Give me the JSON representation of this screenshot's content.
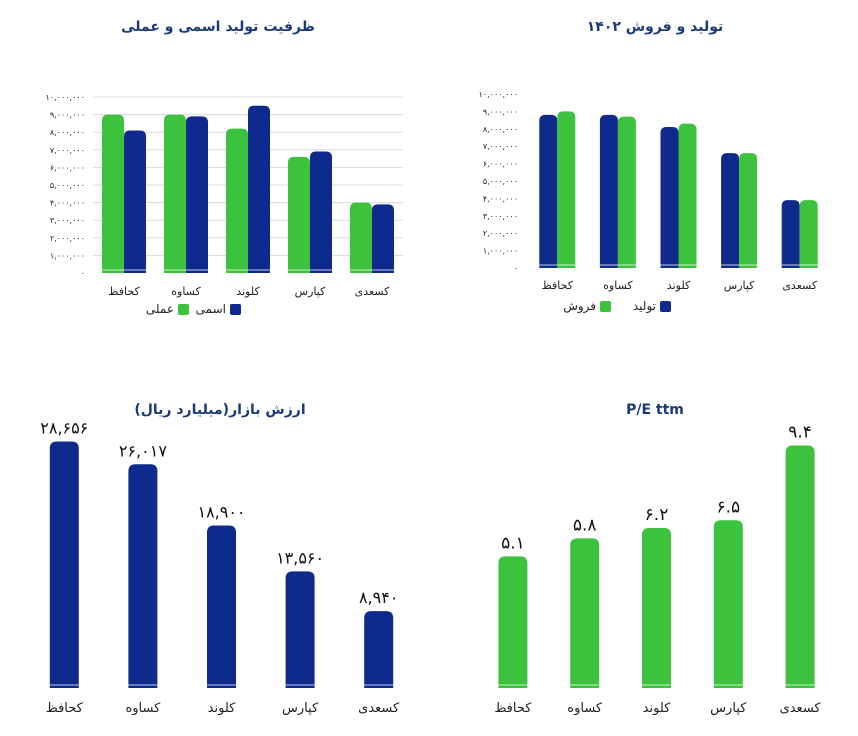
{
  "colors": {
    "green": "#3CC23C",
    "navy": "#0D2A8C",
    "grid": "#D8D8D8",
    "text": "#1a1a1a"
  },
  "chart_data": [
    {
      "id": "production-sales",
      "type": "bar",
      "title": "تولید و فروش ۱۴۰۲",
      "categories": [
        "کحافظ",
        "کساوه",
        "کلوند",
        "کپارس",
        "کسعدی"
      ],
      "series": [
        {
          "name": "تولید",
          "color": "#0D2A8C",
          "values": [
            8800000,
            8800000,
            8100000,
            6600000,
            3900000
          ]
        },
        {
          "name": "فروش",
          "color": "#3CC23C",
          "values": [
            9000000,
            8700000,
            8300000,
            6600000,
            3900000
          ]
        }
      ],
      "ylim": [
        0,
        10000000
      ],
      "yticks": [
        {
          "value": 0,
          "label": "۰"
        },
        {
          "value": 1000000,
          "label": "۱,۰۰۰,۰۰۰"
        },
        {
          "value": 2000000,
          "label": "۲,۰۰۰,۰۰۰"
        },
        {
          "value": 3000000,
          "label": "۳,۰۰۰,۰۰۰"
        },
        {
          "value": 4000000,
          "label": "۴,۰۰۰,۰۰۰"
        },
        {
          "value": 5000000,
          "label": "۵,۰۰۰,۰۰۰"
        },
        {
          "value": 6000000,
          "label": "۶,۰۰۰,۰۰۰"
        },
        {
          "value": 7000000,
          "label": "۷,۰۰۰,۰۰۰"
        },
        {
          "value": 8000000,
          "label": "۸,۰۰۰,۰۰۰"
        },
        {
          "value": 9000000,
          "label": "۹,۰۰۰,۰۰۰"
        },
        {
          "value": 10000000,
          "label": "۱۰,۰۰۰,۰۰۰"
        }
      ],
      "grid": false,
      "legend": "bottom"
    },
    {
      "id": "capacity",
      "type": "bar",
      "title": "ظرفیت تولید اسمی و عملی",
      "categories": [
        "کحافظ",
        "کساوه",
        "کلوند",
        "کپارس",
        "کسعدی"
      ],
      "series": [
        {
          "name": "عملی",
          "color": "#3CC23C",
          "values": [
            9000000,
            9000000,
            8200000,
            6600000,
            4000000
          ]
        },
        {
          "name": "اسمی",
          "color": "#0D2A8C",
          "values": [
            8100000,
            8900000,
            9500000,
            6900000,
            3900000
          ]
        }
      ],
      "ylim": [
        0,
        10000000
      ],
      "yticks": [
        {
          "value": 0,
          "label": "۰"
        },
        {
          "value": 1000000,
          "label": "۱,۰۰۰,۰۰۰"
        },
        {
          "value": 2000000,
          "label": "۲,۰۰۰,۰۰۰"
        },
        {
          "value": 3000000,
          "label": "۳,۰۰۰,۰۰۰"
        },
        {
          "value": 4000000,
          "label": "۴,۰۰۰,۰۰۰"
        },
        {
          "value": 5000000,
          "label": "۵,۰۰۰,۰۰۰"
        },
        {
          "value": 6000000,
          "label": "۶,۰۰۰,۰۰۰"
        },
        {
          "value": 7000000,
          "label": "۷,۰۰۰,۰۰۰"
        },
        {
          "value": 8000000,
          "label": "۸,۰۰۰,۰۰۰"
        },
        {
          "value": 9000000,
          "label": "۹,۰۰۰,۰۰۰"
        },
        {
          "value": 10000000,
          "label": "۱۰,۰۰۰,۰۰۰"
        }
      ],
      "grid": true,
      "legend": "bottom"
    },
    {
      "id": "market-cap",
      "type": "bar",
      "title": "ارزش بازار(میلیارد ریال)",
      "categories": [
        "کحافظ",
        "کساوه",
        "کلوند",
        "کپارس",
        "کسعدی"
      ],
      "series": [
        {
          "color": "#0D2A8C",
          "values": [
            28656,
            26017,
            18900,
            13560,
            8940
          ],
          "labels": [
            "۲۸,۶۵۶",
            "۲۶,۰۱۷",
            "۱۸,۹۰۰",
            "۱۳,۵۶۰",
            "۸,۹۴۰"
          ]
        }
      ],
      "ylim": [
        0,
        30000
      ],
      "grid": false,
      "legend": "none"
    },
    {
      "id": "pe-ttm",
      "type": "bar",
      "title": "P/E ttm",
      "categories": [
        "کحافظ",
        "کساوه",
        "کلوند",
        "کپارس",
        "کسعدی"
      ],
      "series": [
        {
          "color": "#3CC23C",
          "values": [
            5.1,
            5.8,
            6.2,
            6.5,
            9.4
          ],
          "labels": [
            "۵.۱",
            "۵.۸",
            "۶.۲",
            "۶.۵",
            "۹.۴"
          ]
        }
      ],
      "ylim": [
        0,
        10
      ],
      "grid": false,
      "legend": "none"
    }
  ]
}
